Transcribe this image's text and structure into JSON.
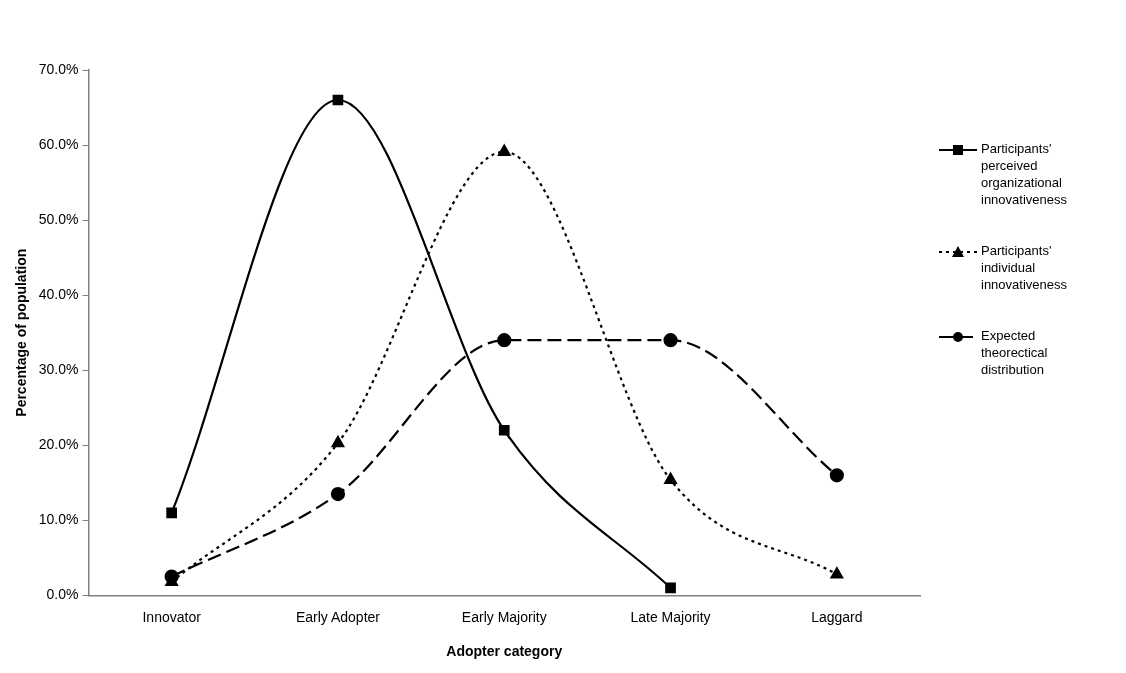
{
  "chart_data": {
    "type": "line",
    "xlabel": "Adopter category",
    "ylabel": "Percentage of population",
    "categories": [
      "Innovator",
      "Early Adopter",
      "Early Majority",
      "Late Majority",
      "Laggard"
    ],
    "series": [
      {
        "name": "Participants' perceived organizational innovativeness",
        "color": "#000000",
        "marker": "square",
        "line_style": "solid",
        "values": [
          11.0,
          66.0,
          22.0,
          1.0,
          null
        ]
      },
      {
        "name": "Participants' individual innovativeness",
        "color": "#000000",
        "marker": "triangle",
        "line_style": "dotted",
        "values": [
          1.8,
          20.3,
          59.1,
          15.4,
          2.8
        ]
      },
      {
        "name": "Expected theorectical distribution",
        "color": "#000000",
        "marker": "circle",
        "line_style": "dashed",
        "values": [
          2.5,
          13.5,
          34.0,
          34.0,
          16.0
        ]
      }
    ],
    "ylim": [
      0,
      70
    ],
    "yticks": [
      {
        "value": 0,
        "label": "0.0%"
      },
      {
        "value": 10,
        "label": "10.0%"
      },
      {
        "value": 20,
        "label": "20.0%"
      },
      {
        "value": 30,
        "label": "30.0%"
      },
      {
        "value": 40,
        "label": "40.0%"
      },
      {
        "value": 50,
        "label": "50.0%"
      },
      {
        "value": 60,
        "label": "60.0%"
      },
      {
        "value": 70,
        "label": "70.0%"
      }
    ],
    "grid": false,
    "legend": "right"
  }
}
